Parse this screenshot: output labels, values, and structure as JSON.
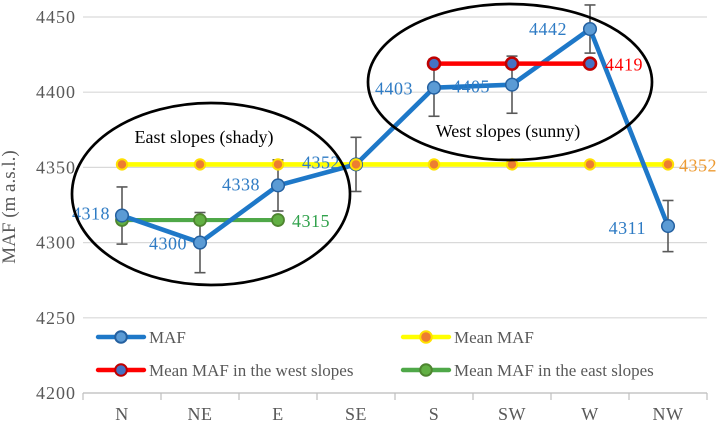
{
  "chart_data": {
    "type": "line",
    "title": "",
    "ylabel": "MAF (m a.s.l.)",
    "ylim": [
      4200,
      4450
    ],
    "yticks": [
      4450,
      4400,
      4350,
      4300,
      4250,
      4200
    ],
    "grid": true,
    "legend_position": "bottom-inside",
    "categories": [
      "N",
      "NE",
      "E",
      "SE",
      "S",
      "SW",
      "W",
      "NW"
    ],
    "series": [
      {
        "name": "MAF",
        "type": "line",
        "values": [
          4318,
          4300,
          4338,
          4352,
          4403,
          4405,
          4442,
          4311
        ],
        "errors": [
          19,
          20,
          17,
          18,
          19,
          19,
          16,
          17
        ],
        "color": "#1E78C8",
        "marker_fill": "#5B9BD5",
        "marker_stroke": "#2460A0",
        "label_color": "#2E7BC4"
      },
      {
        "name": "Mean MAF",
        "type": "line",
        "value": 4352,
        "span": [
          0,
          7
        ],
        "color": "#FFFF00",
        "marker_fill": "#ED7D31",
        "marker_stroke": "#FFE000",
        "label_color": "#ED9B33"
      },
      {
        "name": "Mean MAF in the west slopes",
        "type": "line",
        "value": 4419,
        "span": [
          4,
          6
        ],
        "color": "#FE0000",
        "marker_fill": "#4472C4",
        "marker_stroke": "#C00000",
        "label_color": "#FE0000"
      },
      {
        "name": "Mean MAF in the east slopes",
        "type": "line",
        "value": 4315,
        "span": [
          0,
          2
        ],
        "color": "#4FA848",
        "marker_fill": "#62B044",
        "marker_stroke": "#4E8530",
        "label_color": "#31A24C"
      }
    ],
    "annotations": [
      {
        "text": "East slopes (shady)",
        "target": "east-group"
      },
      {
        "text": "West slopes (sunny)",
        "target": "west-group"
      }
    ],
    "error_bar_color": "#595959",
    "gridline_color": "#D9D9D9",
    "axis_line_color": "#BFBFBF",
    "tick_text_color": "#595959",
    "annotation_text_color": "#000000",
    "ellipse_color": "#000000"
  }
}
